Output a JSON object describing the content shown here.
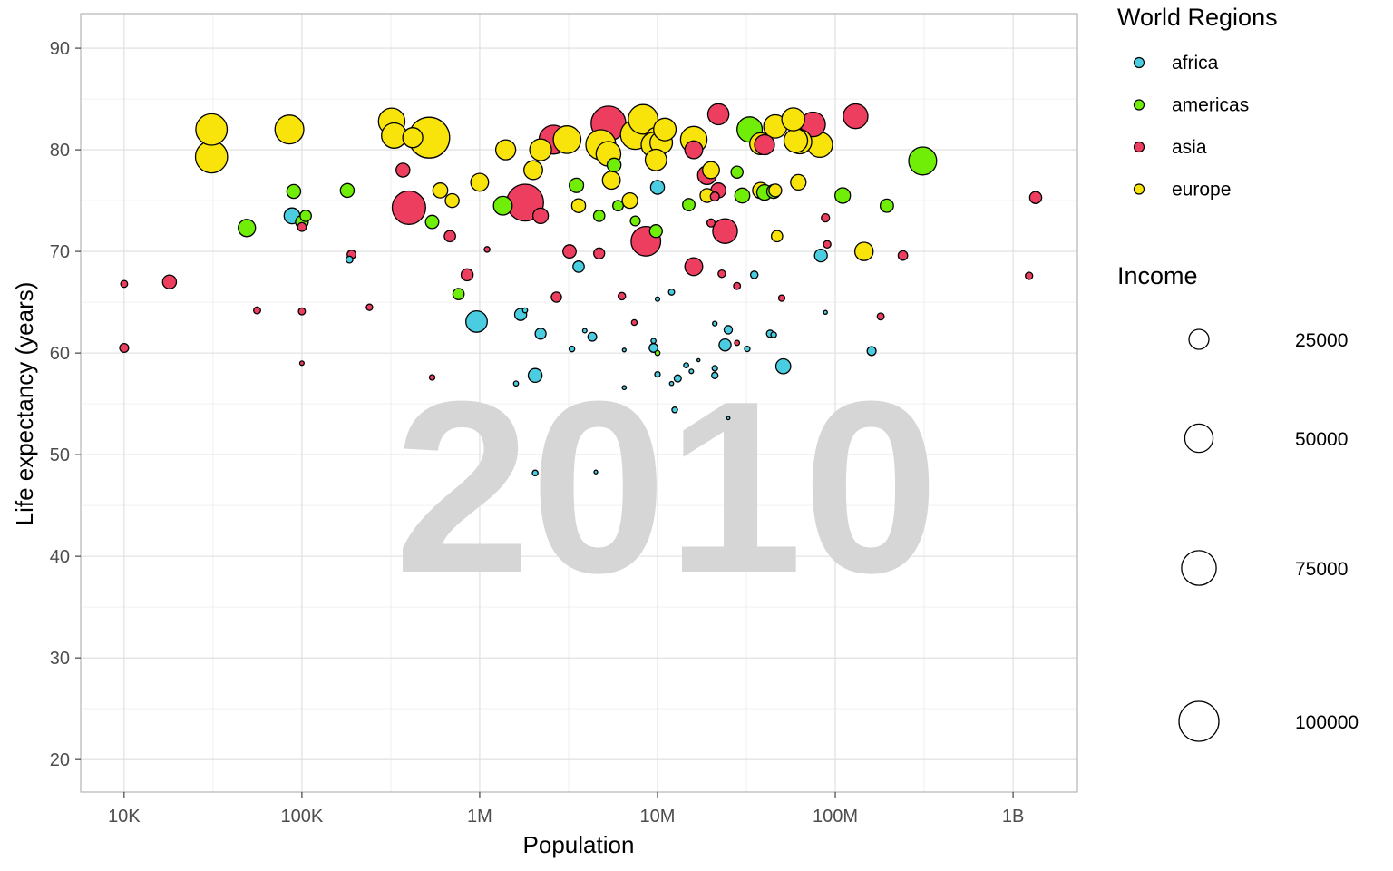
{
  "chart_data": {
    "type": "scatter",
    "xlabel": "Population",
    "ylabel": "Life expectancy (years)",
    "x_scale": "log",
    "xlim": [
      5700,
      2300000000
    ],
    "ylim": [
      16.8,
      93.4
    ],
    "x_ticks": [
      {
        "value": 10000,
        "label": "10K"
      },
      {
        "value": 100000,
        "label": "100K"
      },
      {
        "value": 1000000,
        "label": "1M"
      },
      {
        "value": 10000000,
        "label": "10M"
      },
      {
        "value": 100000000,
        "label": "100M"
      },
      {
        "value": 1000000000,
        "label": "1B"
      }
    ],
    "y_ticks": [
      20,
      30,
      40,
      50,
      60,
      70,
      80,
      90
    ],
    "year": "2010",
    "grid": true,
    "legend_position": "right",
    "color_legend": {
      "title": "World Regions",
      "entries": [
        {
          "name": "africa",
          "color": "#4bcde1"
        },
        {
          "name": "americas",
          "color": "#70ee08"
        },
        {
          "name": "asia",
          "color": "#ee3e60"
        },
        {
          "name": "europe",
          "color": "#f8e30b"
        }
      ]
    },
    "size_legend": {
      "title": "Income",
      "values": [
        25000,
        50000,
        75000,
        100000
      ]
    },
    "series": [
      {
        "name": "africa",
        "color": "#4bcde1",
        "points": [
          [
            88000,
            73.5,
            15500
          ],
          [
            185000,
            69.2,
            3000
          ],
          [
            960000,
            63.1,
            29000
          ],
          [
            1700000,
            63.8,
            9000
          ],
          [
            2050000,
            57.8,
            12000
          ],
          [
            2200000,
            61.9,
            7500
          ],
          [
            1800000,
            64.2,
            1500
          ],
          [
            1600000,
            57.0,
            1500
          ],
          [
            3300000,
            60.4,
            2000
          ],
          [
            3900000,
            62.2,
            1200
          ],
          [
            4300000,
            61.6,
            4800
          ],
          [
            6500000,
            60.3,
            800
          ],
          [
            6500000,
            56.6,
            1000
          ],
          [
            9500000,
            61.2,
            1500
          ],
          [
            9500000,
            60.5,
            4800
          ],
          [
            10000000,
            65.3,
            1200
          ],
          [
            10000000,
            57.9,
            1800
          ],
          [
            12000000,
            66.0,
            2200
          ],
          [
            13000000,
            57.5,
            3200
          ],
          [
            14500000,
            58.8,
            1500
          ],
          [
            15500000,
            58.2,
            1200
          ],
          [
            12000000,
            57.0,
            1000
          ],
          [
            12500000,
            54.4,
            2000
          ],
          [
            21000000,
            58.5,
            1800
          ],
          [
            21000000,
            57.8,
            2600
          ],
          [
            24000000,
            60.8,
            9000
          ],
          [
            25000000,
            62.3,
            4300
          ],
          [
            21000000,
            62.9,
            1300
          ],
          [
            25000000,
            53.6,
            700
          ],
          [
            32000000,
            60.4,
            1800
          ],
          [
            35000000,
            67.7,
            3500
          ],
          [
            43000000,
            61.9,
            3300
          ],
          [
            45000000,
            61.8,
            2000
          ],
          [
            51000000,
            58.7,
            14000
          ],
          [
            83000000,
            69.6,
            10000
          ],
          [
            88000000,
            64.0,
            900
          ],
          [
            160000000,
            60.2,
            5000
          ],
          [
            2050000,
            48.2,
            2000
          ],
          [
            4500000,
            48.3,
            800
          ],
          [
            3600000,
            68.5,
            8000
          ],
          [
            10000000,
            76.3,
            12000
          ],
          [
            17000000,
            59.3,
            500
          ]
        ]
      },
      {
        "name": "americas",
        "color": "#70ee08",
        "points": [
          [
            49000,
            72.3,
            18500
          ],
          [
            90000,
            75.9,
            12000
          ],
          [
            100000,
            72.9,
            10000
          ],
          [
            105000,
            73.5,
            8000
          ],
          [
            180000,
            76.0,
            12000
          ],
          [
            540000,
            72.9,
            11000
          ],
          [
            760000,
            65.8,
            8000
          ],
          [
            1350000,
            74.5,
            22000
          ],
          [
            3500000,
            76.5,
            13000
          ],
          [
            10000000,
            60.0,
            1500
          ],
          [
            30000000,
            75.5,
            14000
          ],
          [
            28000000,
            77.8,
            9000
          ],
          [
            33000000,
            82.0,
            40000
          ],
          [
            45000000,
            75.9,
            12000
          ],
          [
            110000000,
            75.5,
            15000
          ],
          [
            195000000,
            74.5,
            11000
          ],
          [
            310000000,
            78.9,
            49000
          ],
          [
            9800000,
            72.0,
            10000
          ],
          [
            4700000,
            73.5,
            8000
          ],
          [
            7500000,
            73.0,
            6000
          ],
          [
            5700000,
            78.5,
            12000
          ],
          [
            6000000,
            74.5,
            7000
          ],
          [
            15000000,
            74.6,
            9500
          ],
          [
            40000000,
            75.8,
            15000
          ]
        ]
      },
      {
        "name": "asia",
        "color": "#ee3e60",
        "points": [
          [
            10000,
            66.8,
            3000
          ],
          [
            10000,
            60.5,
            5000
          ],
          [
            18000,
            67.0,
            12000
          ],
          [
            56000,
            64.2,
            3000
          ],
          [
            100000,
            64.1,
            3000
          ],
          [
            100000,
            59.0,
            1200
          ],
          [
            100000,
            72.4,
            4800
          ],
          [
            190000,
            69.7,
            4800
          ],
          [
            240000,
            64.5,
            2500
          ],
          [
            540000,
            57.6,
            1800
          ],
          [
            370000,
            78.0,
            12000
          ],
          [
            400000,
            74.3,
            70000
          ],
          [
            680000,
            71.5,
            8000
          ],
          [
            850000,
            67.7,
            9000
          ],
          [
            1100000,
            70.2,
            2000
          ],
          [
            1800000,
            74.8,
            85000
          ],
          [
            2600000,
            81.0,
            52000
          ],
          [
            2700000,
            65.5,
            6500
          ],
          [
            3200000,
            70.0,
            11000
          ],
          [
            4700000,
            69.8,
            7500
          ],
          [
            5300000,
            82.6,
            75000
          ],
          [
            6300000,
            65.6,
            3500
          ],
          [
            7400000,
            63.0,
            2000
          ],
          [
            8600000,
            71.0,
            55000
          ],
          [
            16000000,
            68.5,
            20000
          ],
          [
            22000000,
            83.5,
            28000
          ],
          [
            22000000,
            76.0,
            14000
          ],
          [
            20000000,
            72.8,
            4000
          ],
          [
            21000000,
            75.4,
            5000
          ],
          [
            24000000,
            72.0,
            38000
          ],
          [
            23000000,
            67.8,
            3500
          ],
          [
            28000000,
            66.6,
            3000
          ],
          [
            28000000,
            61.0,
            1600
          ],
          [
            40000000,
            80.5,
            25000
          ],
          [
            50000000,
            65.4,
            2500
          ],
          [
            75000000,
            82.5,
            38000
          ],
          [
            88000000,
            73.3,
            4200
          ],
          [
            90000000,
            70.7,
            3500
          ],
          [
            130000000,
            83.3,
            38000
          ],
          [
            180000000,
            63.6,
            3000
          ],
          [
            240000000,
            69.6,
            5500
          ],
          [
            1230000000,
            67.6,
            3300
          ],
          [
            1340000000,
            75.3,
            9000
          ],
          [
            16000000,
            80.0,
            20000
          ],
          [
            2200000,
            73.5,
            15000
          ],
          [
            19000000,
            77.5,
            22000
          ]
        ]
      },
      {
        "name": "europe",
        "color": "#f8e30b",
        "points": [
          [
            31000,
            79.3,
            65000
          ],
          [
            31000,
            82.0,
            62000
          ],
          [
            85000,
            82.0,
            52000
          ],
          [
            320000,
            82.8,
            44000
          ],
          [
            330000,
            81.4,
            40000
          ],
          [
            520000,
            81.2,
            105000
          ],
          [
            600000,
            76.0,
            14000
          ],
          [
            420000,
            81.2,
            25000
          ],
          [
            1400000,
            80.0,
            25000
          ],
          [
            2200000,
            80.0,
            30000
          ],
          [
            3100000,
            81.0,
            48000
          ],
          [
            4800000,
            80.5,
            56000
          ],
          [
            5300000,
            79.6,
            38000
          ],
          [
            5500000,
            77.0,
            20000
          ],
          [
            7500000,
            81.5,
            55000
          ],
          [
            8300000,
            83.0,
            55000
          ],
          [
            9500000,
            80.5,
            38000
          ],
          [
            10000000,
            81.0,
            40000
          ],
          [
            10500000,
            80.7,
            32000
          ],
          [
            11000000,
            82.0,
            32000
          ],
          [
            16000000,
            81.0,
            44000
          ],
          [
            20000000,
            78.0,
            18000
          ],
          [
            38000000,
            76.0,
            16000
          ],
          [
            38000000,
            80.6,
            30000
          ],
          [
            46000000,
            82.3,
            34000
          ],
          [
            47000000,
            71.5,
            8000
          ],
          [
            58000000,
            83.0,
            33000
          ],
          [
            60000000,
            80.9,
            35000
          ],
          [
            63000000,
            80.8,
            37000
          ],
          [
            62000000,
            76.8,
            15000
          ],
          [
            82000000,
            80.5,
            40000
          ],
          [
            145000000,
            70.0,
            21000
          ],
          [
            700000,
            75.0,
            12000
          ],
          [
            3600000,
            74.5,
            12000
          ],
          [
            2000000,
            78.0,
            22000
          ],
          [
            1000000,
            76.8,
            20000
          ],
          [
            7000000,
            75.0,
            15000
          ],
          [
            9800000,
            79.0,
            29000
          ],
          [
            19000000,
            75.5,
            12000
          ],
          [
            46000000,
            76.0,
            10000
          ]
        ]
      }
    ]
  }
}
